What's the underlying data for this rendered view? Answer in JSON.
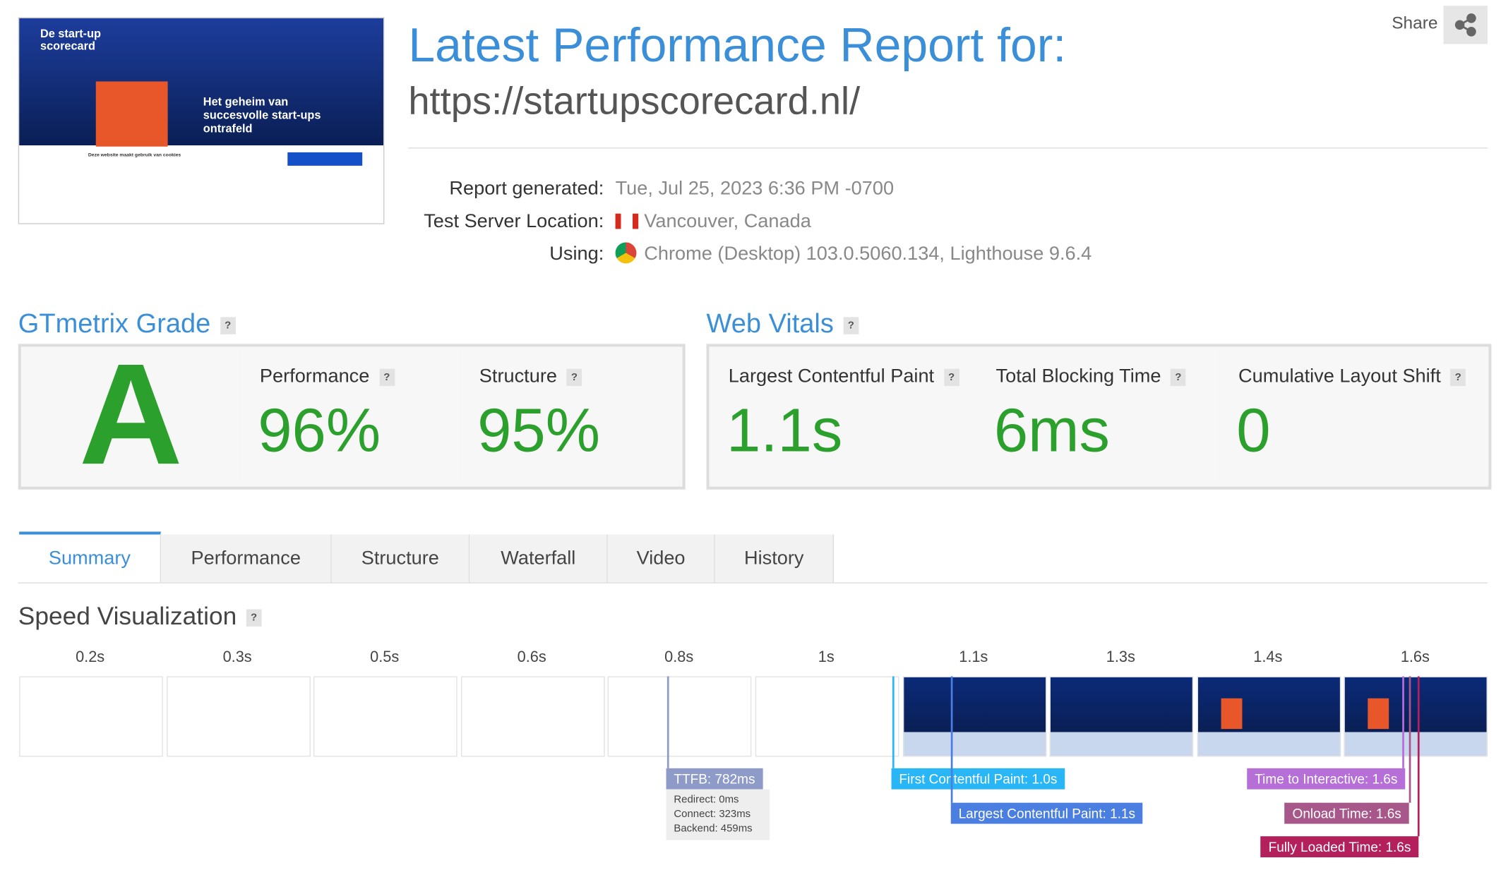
{
  "header": {
    "title": "Latest Performance Report for:",
    "url": "https://startupscorecard.nl/",
    "share": "Share"
  },
  "thumbnail": {
    "brand": "De start-up scorecard",
    "headline": "Het geheim van succesvolle start-ups ontrafeld",
    "cookie_title": "Deze website maakt gebruik van cookies"
  },
  "report": {
    "rows": [
      {
        "label": "Report generated:",
        "value": "Tue, Jul 25, 2023 6:36 PM -0700"
      },
      {
        "label": "Test Server Location:",
        "value": "Vancouver, Canada"
      },
      {
        "label": "Using:",
        "value": "Chrome (Desktop) 103.0.5060.134, Lighthouse 9.6.4"
      }
    ]
  },
  "help": "?",
  "grade": {
    "title": "GTmetrix Grade",
    "letter": "A",
    "metrics": [
      {
        "label": "Performance",
        "value": "96%"
      },
      {
        "label": "Structure",
        "value": "95%"
      }
    ]
  },
  "vitals": {
    "title": "Web Vitals",
    "metrics": [
      {
        "label": "Largest Contentful Paint",
        "value": "1.1s"
      },
      {
        "label": "Total Blocking Time",
        "value": "6ms"
      },
      {
        "label": "Cumulative Layout Shift",
        "value": "0"
      }
    ]
  },
  "tabs": [
    "Summary",
    "Performance",
    "Structure",
    "Waterfall",
    "Video",
    "History"
  ],
  "speed": {
    "title": "Speed Visualization",
    "frames": [
      "0.2s",
      "0.3s",
      "0.5s",
      "0.6s",
      "0.8s",
      "1s",
      "1.1s",
      "1.3s",
      "1.4s",
      "1.6s"
    ],
    "markers": [
      "TTFB: 782ms",
      "First Contentful Paint: 1.0s",
      "Largest Contentful Paint: 1.1s",
      "Time to Interactive: 1.6s",
      "Onload Time: 1.6s",
      "Fully Loaded Time: 1.6s"
    ],
    "ttfb_details": [
      "Redirect: 0ms",
      "Connect: 323ms",
      "Backend: 459ms"
    ]
  }
}
